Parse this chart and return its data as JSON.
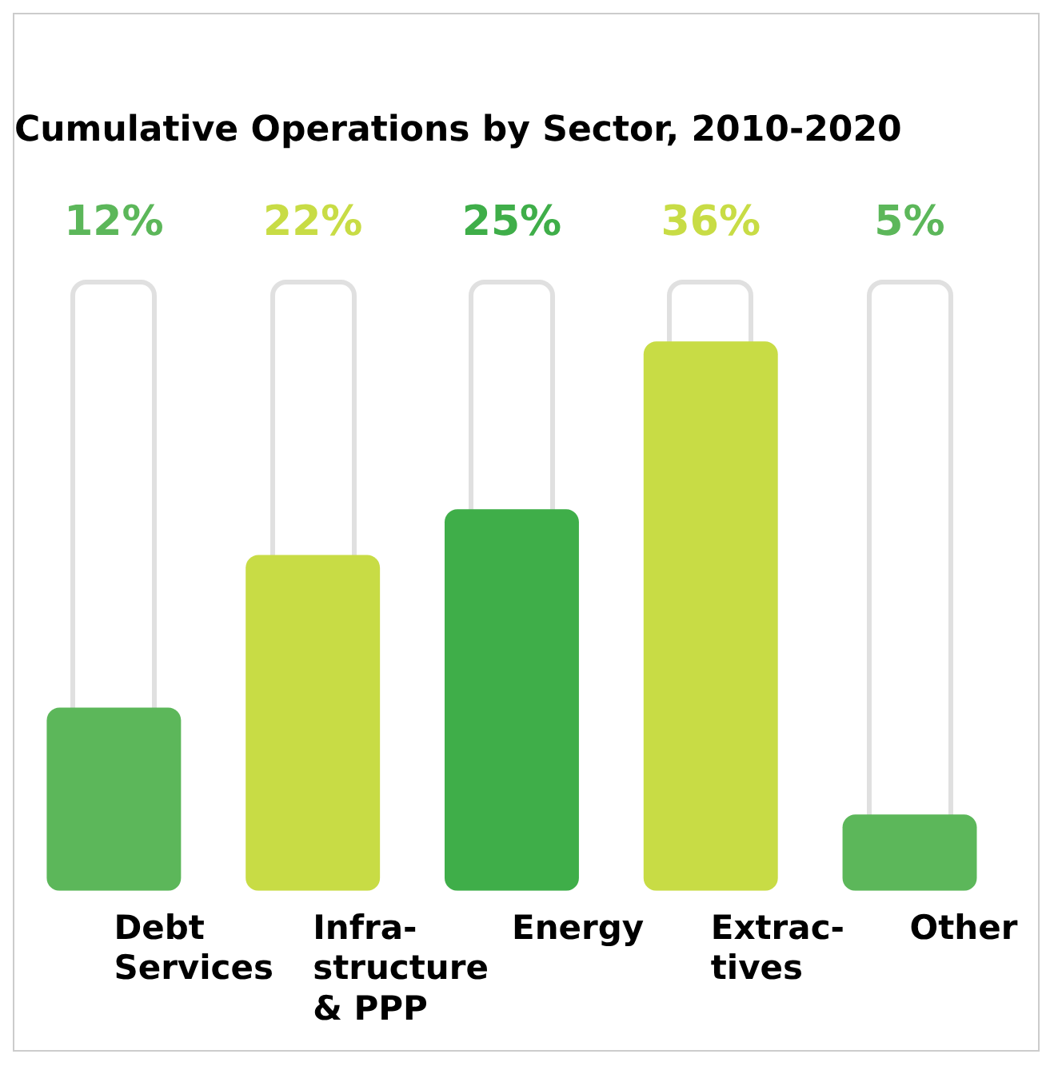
{
  "chart_data": {
    "type": "bar",
    "title": "Cumulative Operations by Sector, 2010-2020",
    "categories": [
      "Debt Services",
      "Infra- structure & PPP",
      "Energy",
      "Extrac- tives",
      "Other"
    ],
    "values": [
      12,
      22,
      25,
      36,
      5
    ],
    "colors": [
      "#5cb75a",
      "#c8dc45",
      "#3fae49",
      "#c8dc45",
      "#5cb75a"
    ],
    "value_labels": [
      "12%",
      "22%",
      "25%",
      "36%",
      "5%"
    ],
    "grid": false,
    "legend": false,
    "tick_labels": "x"
  }
}
